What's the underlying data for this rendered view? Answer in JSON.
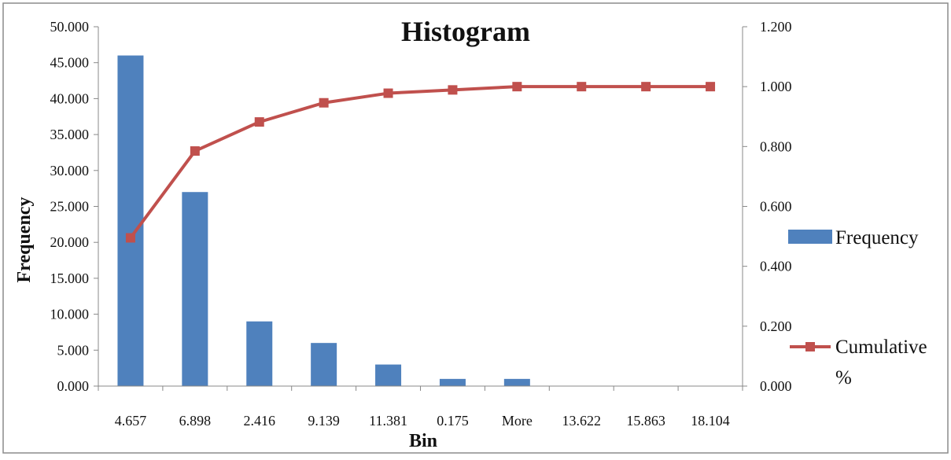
{
  "chart_data": {
    "type": "bar",
    "title": "Histogram",
    "xlabel": "Bin",
    "ylabel": "Frequency",
    "categories": [
      "4.657",
      "6.898",
      "2.416",
      "9.139",
      "11.381",
      "0.175",
      "More",
      "13.622",
      "15.863",
      "18.104"
    ],
    "series": [
      {
        "name": "Frequency",
        "type": "bar",
        "axis": "left",
        "color": "#4f81bd",
        "values": [
          46,
          27,
          9,
          6,
          3,
          1,
          1,
          0,
          0,
          0
        ]
      },
      {
        "name": "Cumulative %",
        "type": "line",
        "axis": "right",
        "color": "#c0504d",
        "values": [
          0.495,
          0.785,
          0.882,
          0.946,
          0.978,
          0.989,
          1.0,
          1.0,
          1.0,
          1.0
        ]
      }
    ],
    "ylim": [
      0,
      50
    ],
    "y2lim": [
      0,
      1.2
    ],
    "yticks": [
      "0.000",
      "5.000",
      "10.000",
      "15.000",
      "20.000",
      "25.000",
      "30.000",
      "35.000",
      "40.000",
      "45.000",
      "50.000"
    ],
    "y2ticks": [
      "0.000",
      "0.200",
      "0.400",
      "0.600",
      "0.800",
      "1.000",
      "1.200"
    ],
    "grid": false,
    "legend": "right",
    "legend_labels": {
      "frequency": "Frequency",
      "cumulative_line1": "Cumulative",
      "cumulative_line2": "%"
    }
  }
}
